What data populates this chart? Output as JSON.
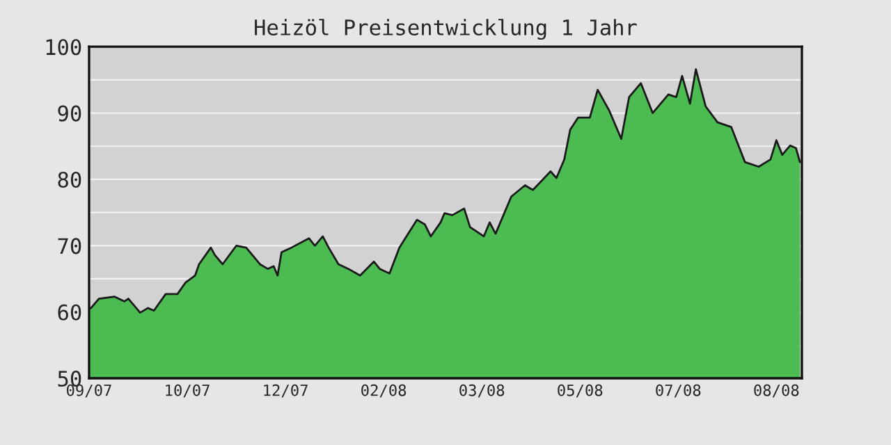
{
  "chart_data": {
    "type": "area",
    "title": "Heizöl Preisentwicklung 1 Jahr",
    "x": [
      "2007-09-08",
      "2007-09-09",
      "2007-09-13",
      "2007-09-21",
      "2007-09-26",
      "2007-09-28",
      "2007-10-04",
      "2007-10-08",
      "2007-10-11",
      "2007-10-17",
      "2007-10-23",
      "2007-10-27",
      "2007-11-01",
      "2007-11-03",
      "2007-11-09",
      "2007-11-11",
      "2007-11-15",
      "2007-11-22",
      "2007-11-27",
      "2007-12-04",
      "2007-12-08",
      "2007-12-11",
      "2007-12-13",
      "2007-12-15",
      "2007-12-20",
      "2007-12-29",
      "2008-01-01",
      "2008-01-05",
      "2008-01-08",
      "2008-01-13",
      "2008-01-18",
      "2008-01-24",
      "2008-01-31",
      "2008-02-03",
      "2008-02-08",
      "2008-02-13",
      "2008-02-16",
      "2008-02-22",
      "2008-02-26",
      "2008-02-29",
      "2008-03-05",
      "2008-03-07",
      "2008-03-11",
      "2008-03-17",
      "2008-03-20",
      "2008-03-27",
      "2008-03-30",
      "2008-04-02",
      "2008-04-10",
      "2008-04-17",
      "2008-04-21",
      "2008-04-30",
      "2008-05-03",
      "2008-05-07",
      "2008-05-10",
      "2008-05-14",
      "2008-05-20",
      "2008-05-24",
      "2008-05-30",
      "2008-06-05",
      "2008-06-09",
      "2008-06-15",
      "2008-06-21",
      "2008-06-29",
      "2008-07-03",
      "2008-07-06",
      "2008-07-10",
      "2008-07-13",
      "2008-07-18",
      "2008-07-24",
      "2008-07-31",
      "2008-08-07",
      "2008-08-14",
      "2008-08-20",
      "2008-08-23",
      "2008-08-26",
      "2008-08-30",
      "2008-09-02",
      "2008-09-04"
    ],
    "series": [
      {
        "color": "#4cbb52",
        "values": [
          60.5,
          60.6,
          62,
          62.3,
          61.6,
          62,
          59.9,
          60.6,
          60.2,
          62.7,
          62.7,
          64.4,
          65.5,
          67.2,
          69.7,
          68.6,
          67.2,
          70,
          69.7,
          67.2,
          66.5,
          66.9,
          65.5,
          69,
          69.7,
          71.1,
          70,
          71.4,
          69.7,
          67.2,
          66.5,
          65.5,
          67.6,
          66.5,
          65.8,
          69.7,
          71.1,
          73.9,
          73.2,
          71.4,
          73.5,
          74.9,
          74.6,
          75.6,
          72.8,
          71.4,
          73.5,
          71.8,
          77.4,
          79.1,
          78.4,
          81.2,
          80.2,
          83,
          87.5,
          89.3,
          89.3,
          93.5,
          90.3,
          86.1,
          92.4,
          94.5,
          90,
          92.8,
          92.4,
          95.6,
          91.4,
          96.6,
          91,
          88.6,
          87.9,
          82.6,
          81.9,
          83,
          85.9,
          83.7,
          85.1,
          84.7,
          82.6
        ]
      }
    ],
    "xlim": [
      "2007-09-08",
      "2008-09-05"
    ],
    "xticks": [
      {
        "value": "2007-09-08",
        "label": "09/07"
      },
      {
        "value": "2007-10-28",
        "label": "10/07"
      },
      {
        "value": "2007-12-17",
        "label": "12/07"
      },
      {
        "value": "2008-02-05",
        "label": "02/08"
      },
      {
        "value": "2008-03-26",
        "label": "03/08"
      },
      {
        "value": "2008-05-15",
        "label": "05/08"
      },
      {
        "value": "2008-07-04",
        "label": "07/08"
      },
      {
        "value": "2008-08-23",
        "label": "08/08"
      }
    ],
    "ylim": [
      50,
      100
    ],
    "yticks": [
      50,
      {
        "value": 55,
        "label": null
      },
      60,
      {
        "value": 65,
        "label": null
      },
      70,
      {
        "value": 75,
        "label": null
      },
      80,
      {
        "value": 85,
        "label": null
      },
      90,
      {
        "value": 95,
        "label": null
      },
      100
    ],
    "grid": "y"
  }
}
